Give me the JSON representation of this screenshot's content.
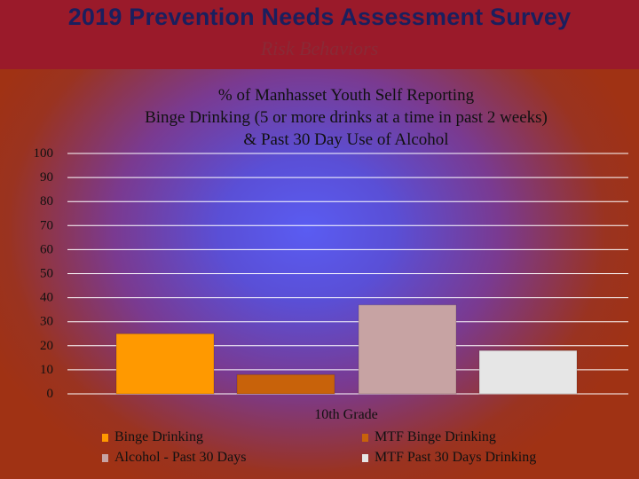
{
  "header": {
    "title": "2019 Prevention Needs Assessment Survey",
    "subtitle": "Risk Behaviors"
  },
  "chart_data": {
    "type": "bar",
    "title_lines": [
      "% of Manhasset Youth Self Reporting",
      "Binge Drinking (5 or more drinks at a time in past 2 weeks)",
      "& Past 30 Day Use of Alcohol"
    ],
    "categories": [
      "10th Grade"
    ],
    "series": [
      {
        "name": "Binge Drinking",
        "values": [
          25
        ],
        "color": "#ff9900"
      },
      {
        "name": "MTF Binge Drinking",
        "values": [
          8
        ],
        "color": "#c8620a"
      },
      {
        "name": "Alcohol - Past 30 Days",
        "values": [
          37
        ],
        "color": "#c7a3a3"
      },
      {
        "name": "MTF Past 30 Days Drinking",
        "values": [
          18
        ],
        "color": "#e6e6e6"
      }
    ],
    "ylim": [
      0,
      100
    ],
    "yticks": [
      "0",
      "10",
      "20",
      "30",
      "40",
      "50",
      "60",
      "70",
      "80",
      "90",
      "100"
    ],
    "grid": true,
    "legend_position": "bottom"
  }
}
